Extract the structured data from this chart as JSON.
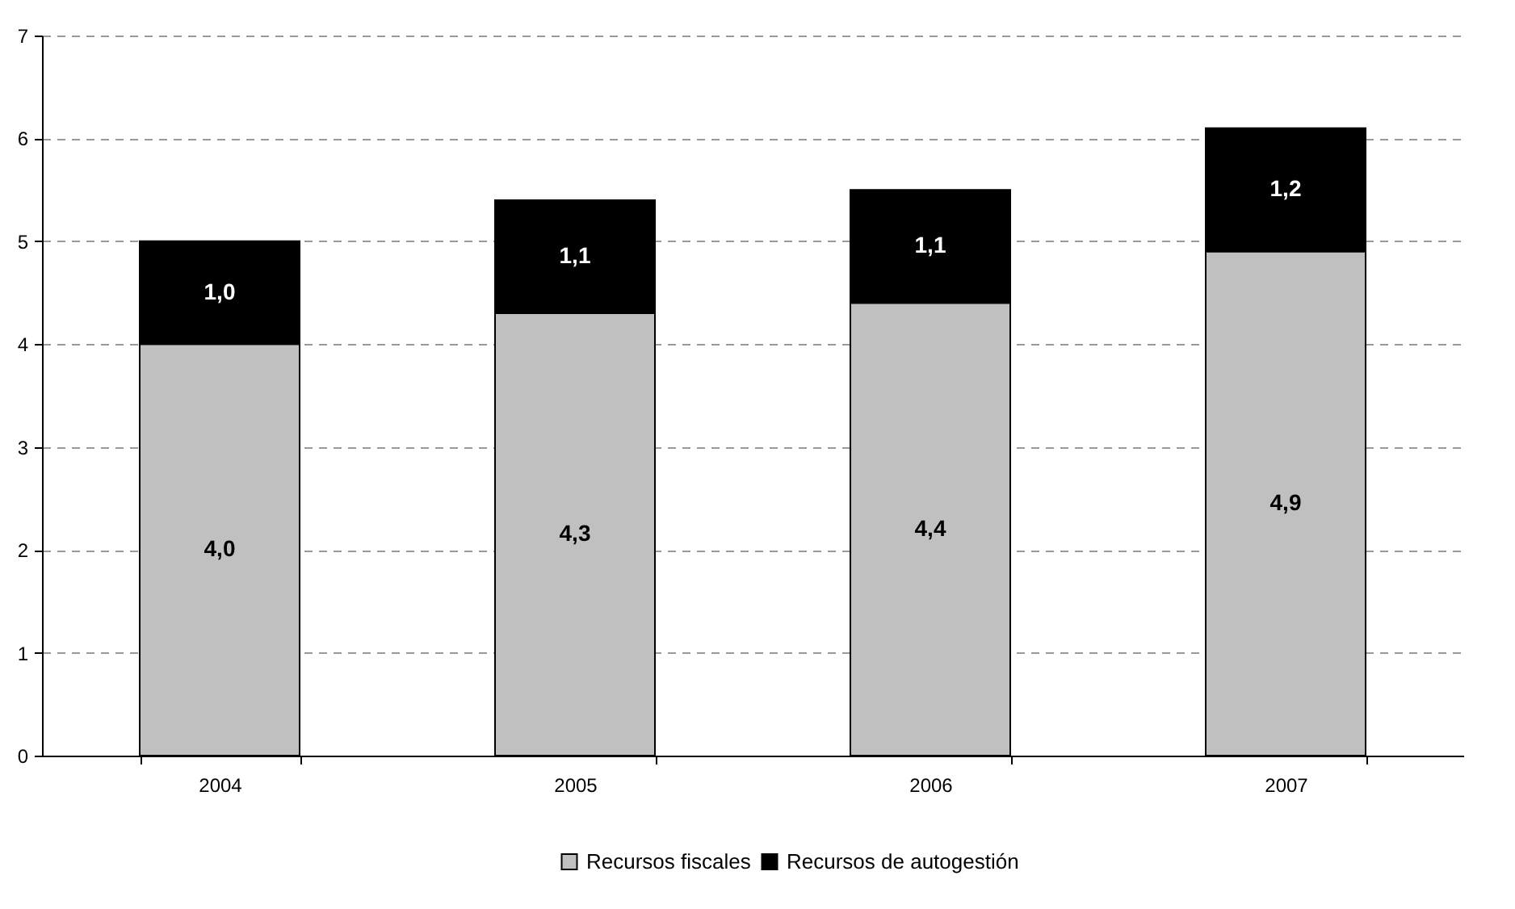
{
  "chart_data": {
    "type": "bar",
    "stacked": true,
    "categories": [
      "2004",
      "2005",
      "2006",
      "2007"
    ],
    "series": [
      {
        "name": "Recursos fiscales",
        "color": "#c0c0c0",
        "values": [
          4.0,
          4.3,
          4.4,
          4.9
        ],
        "value_labels": [
          "4,0",
          "4,3",
          "4,4",
          "4,9"
        ]
      },
      {
        "name": "Recursos de autogestión",
        "color": "#000000",
        "values": [
          1.0,
          1.1,
          1.1,
          1.2
        ],
        "value_labels": [
          "1,0",
          "1,1",
          "1,1",
          "1,2"
        ]
      }
    ],
    "ylim": [
      0,
      7
    ],
    "yticks": [
      0,
      1,
      2,
      3,
      4,
      5,
      6,
      7
    ],
    "grid": "y",
    "legend": "bottom"
  }
}
